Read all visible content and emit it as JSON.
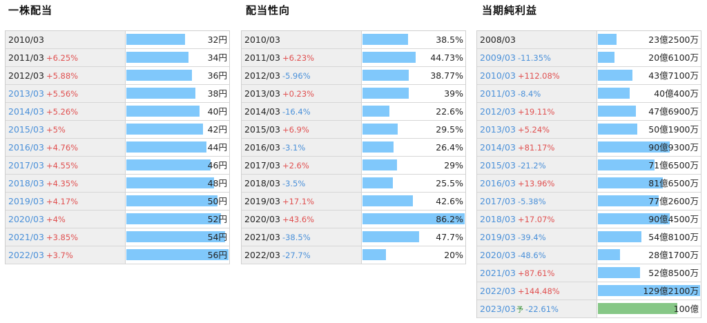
{
  "colors": {
    "bar": "#80c8fb",
    "forecast_bar": "#86c786",
    "positive": "#e05050",
    "negative": "#4a90d9",
    "label_bg": "#efefef"
  },
  "panels": [
    {
      "key": "dividend",
      "title": "一株配当",
      "max": 56,
      "rows": [
        {
          "year": "2010/03",
          "change": "",
          "value": "32円",
          "num": 32,
          "link": false
        },
        {
          "year": "2011/03",
          "change": "+6.25%",
          "value": "34円",
          "num": 34,
          "link": false
        },
        {
          "year": "2012/03",
          "change": "+5.88%",
          "value": "36円",
          "num": 36,
          "link": false
        },
        {
          "year": "2013/03",
          "change": "+5.56%",
          "value": "38円",
          "num": 38,
          "link": true
        },
        {
          "year": "2014/03",
          "change": "+5.26%",
          "value": "40円",
          "num": 40,
          "link": true
        },
        {
          "year": "2015/03",
          "change": "+5%",
          "value": "42円",
          "num": 42,
          "link": true
        },
        {
          "year": "2016/03",
          "change": "+4.76%",
          "value": "44円",
          "num": 44,
          "link": true
        },
        {
          "year": "2017/03",
          "change": "+4.55%",
          "value": "46円",
          "num": 46,
          "link": true
        },
        {
          "year": "2018/03",
          "change": "+4.35%",
          "value": "48円",
          "num": 48,
          "link": true
        },
        {
          "year": "2019/03",
          "change": "+4.17%",
          "value": "50円",
          "num": 50,
          "link": true
        },
        {
          "year": "2020/03",
          "change": "+4%",
          "value": "52円",
          "num": 52,
          "link": true
        },
        {
          "year": "2021/03",
          "change": "+3.85%",
          "value": "54円",
          "num": 54,
          "link": true
        },
        {
          "year": "2022/03",
          "change": "+3.7%",
          "value": "56円",
          "num": 56,
          "link": true
        }
      ]
    },
    {
      "key": "payout",
      "title": "配当性向",
      "max": 86.2,
      "rows": [
        {
          "year": "2010/03",
          "change": "",
          "value": "38.5%",
          "num": 38.5,
          "link": false
        },
        {
          "year": "2011/03",
          "change": "+6.23%",
          "value": "44.73%",
          "num": 44.73,
          "link": false
        },
        {
          "year": "2012/03",
          "change": "-5.96%",
          "value": "38.77%",
          "num": 38.77,
          "link": false
        },
        {
          "year": "2013/03",
          "change": "+0.23%",
          "value": "39%",
          "num": 39,
          "link": false
        },
        {
          "year": "2014/03",
          "change": "-16.4%",
          "value": "22.6%",
          "num": 22.6,
          "link": false
        },
        {
          "year": "2015/03",
          "change": "+6.9%",
          "value": "29.5%",
          "num": 29.5,
          "link": false
        },
        {
          "year": "2016/03",
          "change": "-3.1%",
          "value": "26.4%",
          "num": 26.4,
          "link": false
        },
        {
          "year": "2017/03",
          "change": "+2.6%",
          "value": "29%",
          "num": 29,
          "link": false
        },
        {
          "year": "2018/03",
          "change": "-3.5%",
          "value": "25.5%",
          "num": 25.5,
          "link": false
        },
        {
          "year": "2019/03",
          "change": "+17.1%",
          "value": "42.6%",
          "num": 42.6,
          "link": false
        },
        {
          "year": "2020/03",
          "change": "+43.6%",
          "value": "86.2%",
          "num": 86.2,
          "link": false
        },
        {
          "year": "2021/03",
          "change": "-38.5%",
          "value": "47.7%",
          "num": 47.7,
          "link": false
        },
        {
          "year": "2022/03",
          "change": "-27.7%",
          "value": "20%",
          "num": 20,
          "link": false
        }
      ]
    },
    {
      "key": "net_income",
      "title": "当期純利益",
      "max": 129.21,
      "rows": [
        {
          "year": "2008/03",
          "change": "",
          "value": "23億2500万",
          "num": 23.25,
          "link": false
        },
        {
          "year": "2009/03",
          "change": "-11.35%",
          "value": "20億6100万",
          "num": 20.61,
          "link": true
        },
        {
          "year": "2010/03",
          "change": "+112.08%",
          "value": "43億7100万",
          "num": 43.71,
          "link": true
        },
        {
          "year": "2011/03",
          "change": "-8.4%",
          "value": "40億400万",
          "num": 40.04,
          "link": true
        },
        {
          "year": "2012/03",
          "change": "+19.11%",
          "value": "47億6900万",
          "num": 47.69,
          "link": true
        },
        {
          "year": "2013/03",
          "change": "+5.24%",
          "value": "50億1900万",
          "num": 50.19,
          "link": true
        },
        {
          "year": "2014/03",
          "change": "+81.17%",
          "value": "90億9300万",
          "num": 90.93,
          "link": true
        },
        {
          "year": "2015/03",
          "change": "-21.2%",
          "value": "71億6500万",
          "num": 71.65,
          "link": true
        },
        {
          "year": "2016/03",
          "change": "+13.96%",
          "value": "81億6500万",
          "num": 81.65,
          "link": true
        },
        {
          "year": "2017/03",
          "change": "-5.38%",
          "value": "77億2600万",
          "num": 77.26,
          "link": true
        },
        {
          "year": "2018/03",
          "change": "+17.07%",
          "value": "90億4500万",
          "num": 90.45,
          "link": true
        },
        {
          "year": "2019/03",
          "change": "-39.4%",
          "value": "54億8100万",
          "num": 54.81,
          "link": true
        },
        {
          "year": "2020/03",
          "change": "-48.6%",
          "value": "28億1700万",
          "num": 28.17,
          "link": true
        },
        {
          "year": "2021/03",
          "change": "+87.61%",
          "value": "52億8500万",
          "num": 52.85,
          "link": true
        },
        {
          "year": "2022/03",
          "change": "+144.48%",
          "value": "129億2100万",
          "num": 129.21,
          "link": true
        },
        {
          "year": "2023/03",
          "forecast_mark": "予",
          "change": "-22.61%",
          "value": "100億",
          "num": 100,
          "link": true,
          "forecast": true
        }
      ]
    }
  ]
}
